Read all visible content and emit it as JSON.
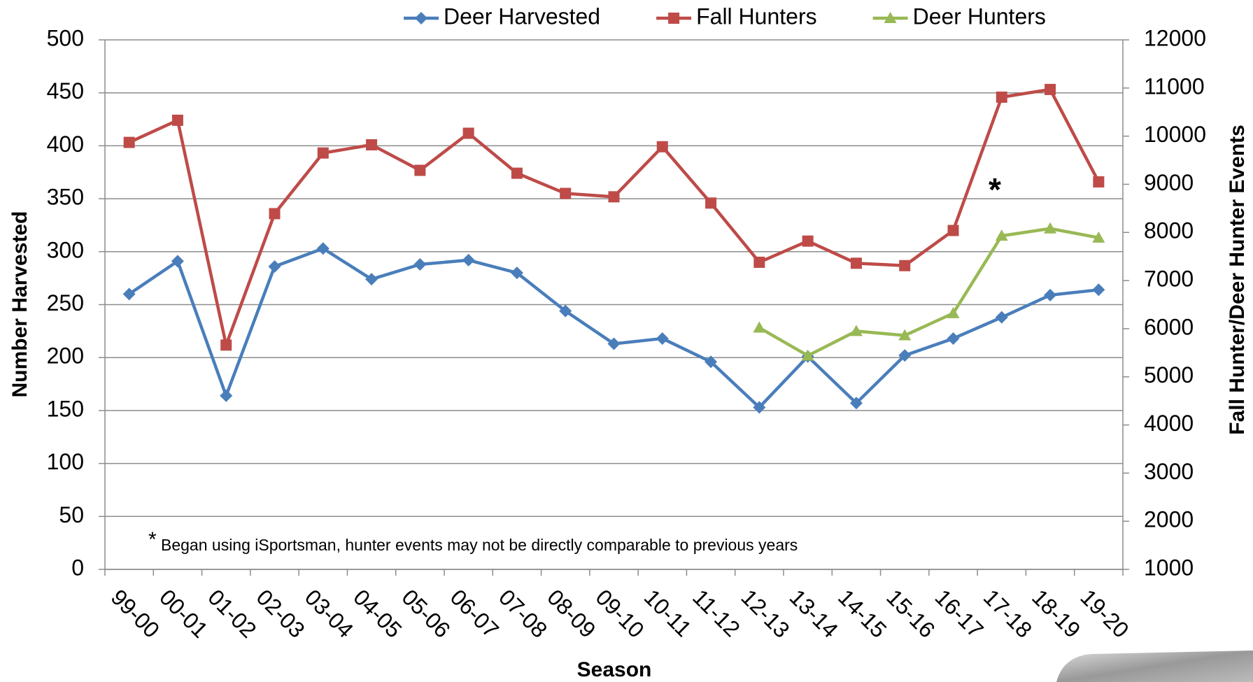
{
  "chart_data": {
    "type": "line",
    "x_label": "Season",
    "y_label": "Number  Harvested",
    "y2_label": "Fall Hunter/Deer Hunter Events",
    "categories": [
      "99-00",
      "00-01",
      "01-02",
      "02-03",
      "03-04",
      "04-05",
      "05-06",
      "06-07",
      "07-08",
      "08-09",
      "09-10",
      "10-11",
      "11-12",
      "12-13",
      "13-14",
      "14-15",
      "15-16",
      "16-17",
      "17-18",
      "18-19",
      "19-20"
    ],
    "series": [
      {
        "name": "Deer Harvested",
        "color": "#4a7ebb",
        "marker": "diamond",
        "values": [
          260,
          291,
          164,
          286,
          303,
          274,
          288,
          292,
          280,
          244,
          213,
          218,
          196,
          153,
          201,
          157,
          202,
          218,
          238,
          259,
          264
        ]
      },
      {
        "name": "Fall Hunters",
        "color": "#be4b48",
        "marker": "square",
        "axis": "y2",
        "values": [
          9870,
          10330,
          5660,
          8390,
          9650,
          9820,
          9290,
          10060,
          9230,
          8810,
          8740,
          9780,
          8610,
          7380,
          7820,
          7360,
          7310,
          8040,
          10810,
          10970,
          9050
        ]
      },
      {
        "name": "Deer Hunters",
        "color": "#98b954",
        "marker": "triangle",
        "axis": "y2",
        "values": [
          null,
          null,
          null,
          null,
          null,
          null,
          null,
          null,
          null,
          null,
          null,
          null,
          null,
          6020,
          5440,
          5950,
          5860,
          6320,
          7930,
          8080,
          7890
        ]
      }
    ],
    "ylim": [
      0,
      500
    ],
    "yticks": [
      0,
      50,
      100,
      150,
      200,
      250,
      300,
      350,
      400,
      450,
      500
    ],
    "y2lim": [
      1000,
      12000
    ],
    "y2ticks": [
      1000,
      2000,
      3000,
      4000,
      5000,
      6000,
      7000,
      8000,
      9000,
      10000,
      11000,
      12000
    ],
    "grid": true,
    "legend": "top",
    "point_annotation": "*",
    "note_marker": "*",
    "note": "Began using iSportsman, hunter events may not be directly comparable to previous years"
  }
}
